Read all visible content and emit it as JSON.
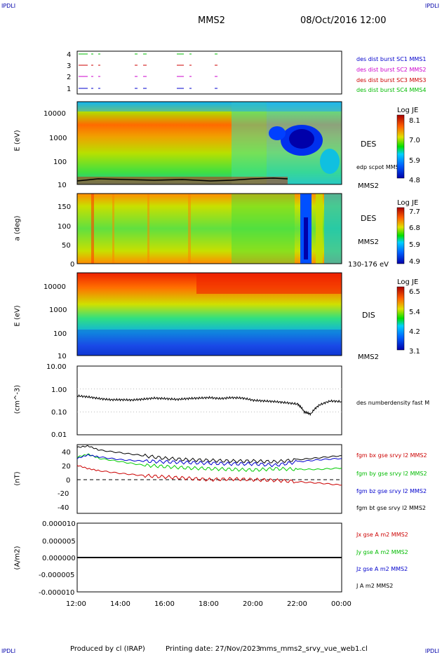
{
  "header": {
    "corner_tl": "IPDLI",
    "corner_tr": "IPDLI",
    "corner_bl": "IPDLI",
    "corner_br": "IPDLI",
    "spacecraft": "MMS2",
    "datetime": "08/Oct/2016 12:00"
  },
  "footer": {
    "produced_by": "Produced by cl (IRAP)",
    "printing_date": "Printing date: 27/Nov/2023",
    "file": "mms_mms2_srvy_vue_web1.cl"
  },
  "colors": {
    "c1": "#0000cc",
    "c2": "#cc00cc",
    "c3": "#cc0000",
    "c4": "#00bb00"
  },
  "chart_data": [
    {
      "type": "table",
      "panel": "burst-availability",
      "yticks": [
        "4",
        "3",
        "2",
        "1"
      ],
      "legend": [
        "des dist burst SC1 MMS1",
        "des dist burst SC2 MMS2",
        "des dist burst SC3 MMS3",
        "des dist burst SC4 MMS4"
      ]
    },
    {
      "type": "heatmap",
      "panel": "des-energy",
      "ylabel": "E (eV)",
      "yticks": [
        "10000",
        "1000",
        "100",
        "10"
      ],
      "label": "DES",
      "overlay": "edp scpot MMS2",
      "sc": "MMS2",
      "colorbar": {
        "title": "Log JE",
        "ticks": [
          "8.1",
          "7.0",
          "5.9",
          "4.8"
        ]
      }
    },
    {
      "type": "heatmap",
      "panel": "des-pitch",
      "ylabel": "a (deg)",
      "yticks": [
        "150",
        "100",
        "50",
        "0"
      ],
      "label": "DES",
      "sc": "MMS2",
      "energy_range": "130-176 eV",
      "colorbar": {
        "title": "Log JE",
        "ticks": [
          "7.7",
          "6.8",
          "5.9",
          "4.9"
        ]
      }
    },
    {
      "type": "heatmap",
      "panel": "dis-energy",
      "ylabel": "E (eV)",
      "yticks": [
        "10000",
        "1000",
        "100",
        "10"
      ],
      "label": "DIS",
      "sc": "MMS2",
      "colorbar": {
        "title": "Log JE",
        "ticks": [
          "6.5",
          "5.4",
          "4.2",
          "3.1"
        ]
      }
    },
    {
      "type": "line",
      "panel": "density",
      "ylabel": "(cm^-3)",
      "yticks": [
        "10.00",
        "1.00",
        "0.10",
        "0.01"
      ],
      "scale": "log",
      "legend": [
        "des numberdensity fast M"
      ],
      "series": [
        {
          "color": "#000000",
          "x_hours": [
            0,
            0.5,
            1,
            1.5,
            2,
            2.5,
            3,
            3.5,
            4,
            4.5,
            5,
            5.5,
            6,
            6.5,
            7,
            7.5,
            8,
            8.5,
            9,
            9.5,
            10,
            10.3,
            10.6,
            11,
            11.5,
            12
          ],
          "values": [
            0.5,
            0.45,
            0.38,
            0.34,
            0.34,
            0.33,
            0.36,
            0.4,
            0.38,
            0.35,
            0.38,
            0.4,
            0.42,
            0.38,
            0.42,
            0.4,
            0.32,
            0.3,
            0.28,
            0.25,
            0.22,
            0.1,
            0.08,
            0.2,
            0.3,
            0.28
          ]
        }
      ]
    },
    {
      "type": "line",
      "panel": "magnetic-field",
      "ylabel": "(nT)",
      "yticks": [
        "40",
        "20",
        "0",
        "-20",
        "-40"
      ],
      "ylim": [
        -50,
        50
      ],
      "legend": [
        "fgm bx gse srvy l2 MMS2",
        "fgm by gse srvy l2 MMS2",
        "fgm bz gse srvy l2 MMS2",
        "fgm bt gse srvy l2 MMS2"
      ],
      "series": [
        {
          "color": "#cc0000",
          "x_hours": [
            0,
            0.5,
            1,
            2,
            3,
            4,
            5,
            6,
            7,
            8,
            9,
            10,
            11,
            12
          ],
          "values": [
            20,
            15,
            12,
            8,
            5,
            3,
            1,
            -1,
            0,
            -1,
            -2,
            -4,
            -6,
            -9
          ]
        },
        {
          "color": "#00cc00",
          "x_hours": [
            0,
            0.5,
            1,
            2,
            3,
            4,
            5,
            6,
            7,
            8,
            9,
            10,
            11,
            12
          ],
          "values": [
            32,
            36,
            30,
            25,
            20,
            18,
            16,
            15,
            14,
            13,
            15,
            14,
            14,
            16
          ]
        },
        {
          "color": "#0000cc",
          "x_hours": [
            0,
            0.5,
            1,
            2,
            3,
            4,
            5,
            6,
            7,
            8,
            9,
            10,
            11,
            12
          ],
          "values": [
            30,
            35,
            32,
            28,
            26,
            25,
            24,
            23,
            22,
            22,
            20,
            25,
            28,
            30
          ]
        },
        {
          "color": "#000000",
          "x_hours": [
            0,
            0.5,
            1,
            2,
            3,
            4,
            5,
            6,
            7,
            8,
            9,
            10,
            11,
            12
          ],
          "values": [
            46,
            48,
            42,
            38,
            34,
            30,
            28,
            27,
            26,
            26,
            25,
            28,
            31,
            34
          ]
        }
      ]
    },
    {
      "type": "line",
      "panel": "current",
      "ylabel": "(A/m2)",
      "yticks": [
        "0.000010",
        "0.000005",
        "0.000000",
        "-0.000005",
        "-0.000010"
      ],
      "ylim": [
        -1e-05,
        1e-05
      ],
      "legend": [
        "Jx gse A m2 MMS2",
        "Jy gse A m2 MMS2",
        "Jz gse A m2 MMS2",
        "J A m2 MMS2"
      ],
      "series": [
        {
          "color": "#000000",
          "x_hours": [
            0,
            12
          ],
          "values": [
            0,
            0
          ]
        }
      ]
    }
  ],
  "xaxis": {
    "ticks": [
      "12:00",
      "14:00",
      "16:00",
      "18:00",
      "20:00",
      "22:00",
      "00:00"
    ]
  }
}
